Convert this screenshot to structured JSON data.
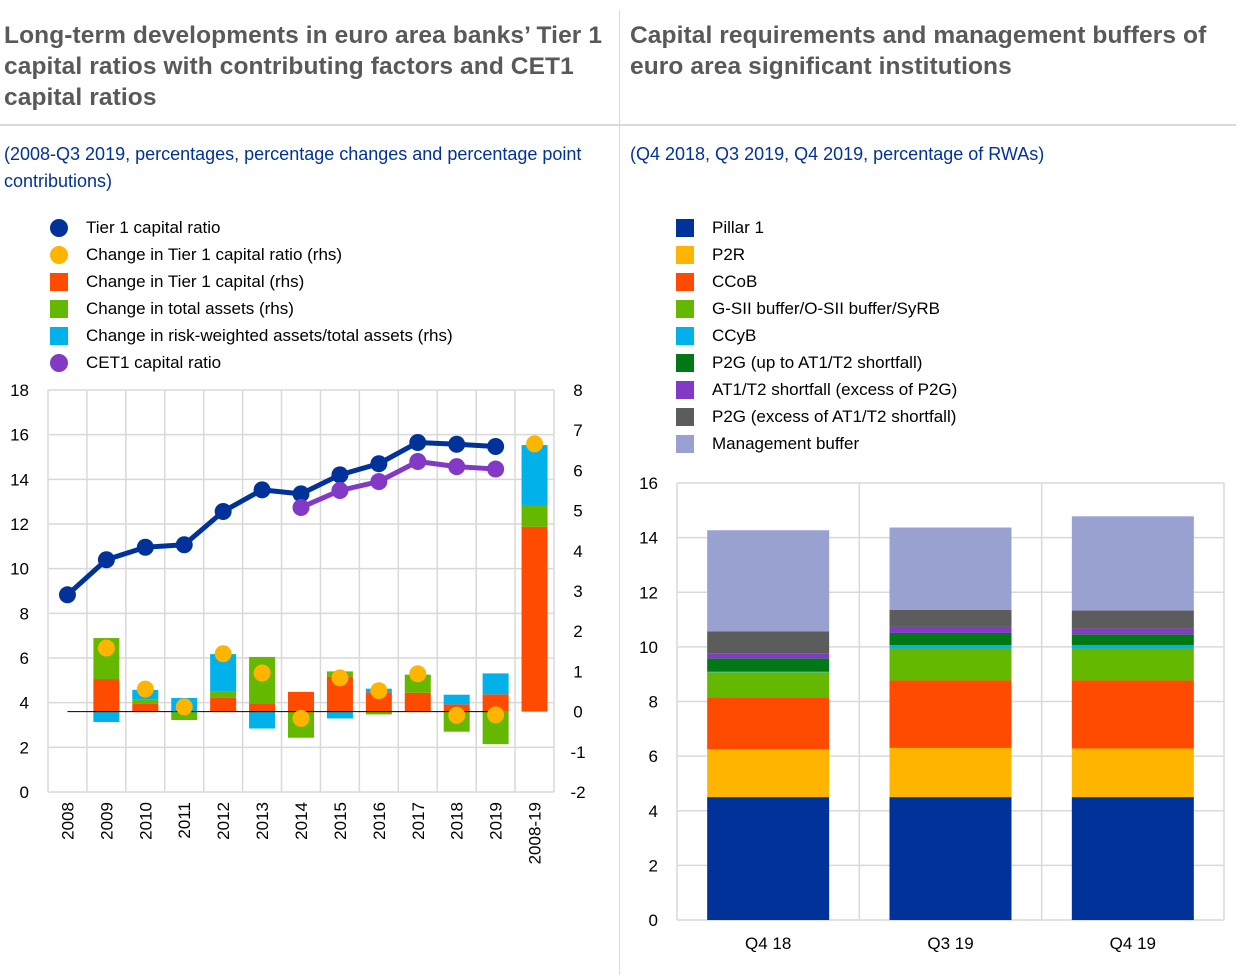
{
  "left": {
    "title": "Long-term developments in euro area banks’ Tier 1 capital ratios with contributing factors and CET1 capital ratios",
    "subtitle": "(2008-Q3 2019, percentages, percentage changes and percentage point contributions)",
    "legend": [
      {
        "label": "Tier 1 capital ratio",
        "shape": "circle",
        "color": "#003299"
      },
      {
        "label": "Change in Tier 1 capital ratio (rhs)",
        "shape": "circle",
        "color": "#FFB400"
      },
      {
        "label": "Change in Tier 1 capital (rhs)",
        "shape": "square",
        "color": "#FF4B00"
      },
      {
        "label": "Change in total assets (rhs)",
        "shape": "square",
        "color": "#65B800"
      },
      {
        "label": "Change in risk-weighted assets/total assets (rhs)",
        "shape": "square",
        "color": "#00B1EA"
      },
      {
        "label": "CET1 capital ratio",
        "shape": "circle",
        "color": "#8139C6"
      }
    ]
  },
  "right": {
    "title": "Capital requirements and management buffers of euro area significant institutions",
    "subtitle": "(Q4 2018, Q3 2019, Q4 2019, percentage of RWAs)",
    "legend": [
      {
        "label": "Pillar 1",
        "color": "#003299"
      },
      {
        "label": "P2R",
        "color": "#FFB400"
      },
      {
        "label": "CCoB",
        "color": "#FF4B00"
      },
      {
        "label": "G-SII buffer/O-SII buffer/SyRB",
        "color": "#65B800"
      },
      {
        "label": "CCyB",
        "color": "#00B1EA"
      },
      {
        "label": "P2G (up to AT1/T2 shortfall)",
        "color": "#007816"
      },
      {
        "label": "AT1/T2 shortfall (excess of P2G)",
        "color": "#8139C6"
      },
      {
        "label": "P2G (excess of AT1/T2 shortfall)",
        "color": "#5C5C5C"
      },
      {
        "label": "Management buffer",
        "color": "#98A1D0"
      }
    ]
  },
  "chart_data": [
    {
      "type": "bar",
      "title": "Long-term developments in euro area banks’ Tier 1 capital ratios with contributing factors and CET1 capital ratios",
      "categories": [
        "2008",
        "2009",
        "2010",
        "2011",
        "2012",
        "2013",
        "2014",
        "2015",
        "2016",
        "2017",
        "2018",
        "2019",
        "2008-19"
      ],
      "y_left": {
        "ylim": [
          0,
          18
        ],
        "ticks": [
          "0",
          "2",
          "4",
          "6",
          "8",
          "10",
          "12",
          "14",
          "16",
          "18"
        ]
      },
      "y_right": {
        "ylim": [
          -2,
          8
        ],
        "ticks": [
          "-2",
          "-1",
          "0",
          "1",
          "2",
          "3",
          "4",
          "5",
          "6",
          "7",
          "8"
        ]
      },
      "grid": true,
      "legend_position": "top",
      "lines": [
        {
          "name": "Tier 1 capital ratio",
          "axis": "left",
          "color": "#003299",
          "values": [
            8.83,
            10.4,
            10.96,
            11.07,
            12.56,
            13.53,
            13.35,
            14.2,
            14.7,
            15.65,
            15.57,
            15.47,
            null
          ]
        },
        {
          "name": "CET1 capital ratio",
          "axis": "left",
          "color": "#8139C6",
          "values": [
            null,
            null,
            null,
            null,
            null,
            null,
            12.74,
            13.5,
            13.9,
            14.8,
            14.57,
            14.46,
            null
          ]
        }
      ],
      "dots": {
        "name": "Change in Tier 1 capital ratio (rhs)",
        "axis": "right",
        "color": "#FFB400",
        "values": [
          null,
          1.58,
          0.56,
          0.12,
          1.44,
          0.96,
          -0.17,
          0.84,
          0.52,
          0.94,
          -0.09,
          -0.08,
          6.66
        ]
      },
      "series": [
        {
          "name": "Change in Tier 1 capital (rhs)",
          "axis": "right",
          "color": "#FF4B00",
          "values": [
            null,
            0.81,
            0.19,
            0.0,
            0.34,
            0.2,
            0.49,
            0.87,
            0.48,
            0.47,
            0.18,
            0.43,
            4.6
          ]
        },
        {
          "name": "Change in total assets (rhs)",
          "axis": "right",
          "color": "#65B800",
          "values": [
            null,
            1.02,
            0.12,
            -0.21,
            0.17,
            1.16,
            -0.65,
            0.13,
            -0.07,
            0.45,
            -0.5,
            -0.81,
            0.54
          ]
        },
        {
          "name": "Change in risk-weighted assets/total assets (rhs)",
          "axis": "right",
          "color": "#00B1EA",
          "values": [
            null,
            -0.26,
            0.23,
            0.34,
            0.92,
            -0.42,
            0.0,
            -0.17,
            0.09,
            0.0,
            0.24,
            0.52,
            1.49
          ]
        }
      ]
    },
    {
      "type": "bar",
      "stacked": true,
      "title": "Capital requirements and management buffers of euro area significant institutions",
      "categories": [
        "Q4 18",
        "Q3 19",
        "Q4 19"
      ],
      "ylim": [
        0,
        16
      ],
      "yticks": [
        "0",
        "2",
        "4",
        "6",
        "8",
        "10",
        "12",
        "14",
        "16"
      ],
      "grid": true,
      "legend_position": "top",
      "series": [
        {
          "name": "Pillar 1",
          "color": "#003299",
          "values": [
            4.5,
            4.5,
            4.5
          ]
        },
        {
          "name": "P2R",
          "color": "#FFB400",
          "values": [
            1.75,
            1.8,
            1.78
          ]
        },
        {
          "name": "CCoB",
          "color": "#FF4B00",
          "values": [
            1.9,
            2.47,
            2.49
          ]
        },
        {
          "name": "G-SII buffer/O-SII buffer/SyRB",
          "color": "#65B800",
          "values": [
            0.92,
            1.17,
            1.17
          ]
        },
        {
          "name": "CCyB",
          "color": "#00B1EA",
          "values": [
            0.02,
            0.12,
            0.13
          ]
        },
        {
          "name": "P2G (up to AT1/T2 shortfall)",
          "color": "#007816",
          "values": [
            0.49,
            0.45,
            0.39
          ]
        },
        {
          "name": "AT1/T2 shortfall (excess of P2G)",
          "color": "#8139C6",
          "values": [
            0.17,
            0.22,
            0.21
          ]
        },
        {
          "name": "P2G (excess of AT1/T2 shortfall)",
          "color": "#5C5C5C",
          "values": [
            0.82,
            0.63,
            0.66
          ]
        },
        {
          "name": "Management buffer",
          "color": "#98A1D0",
          "values": [
            3.7,
            3.01,
            3.45
          ]
        }
      ]
    }
  ]
}
